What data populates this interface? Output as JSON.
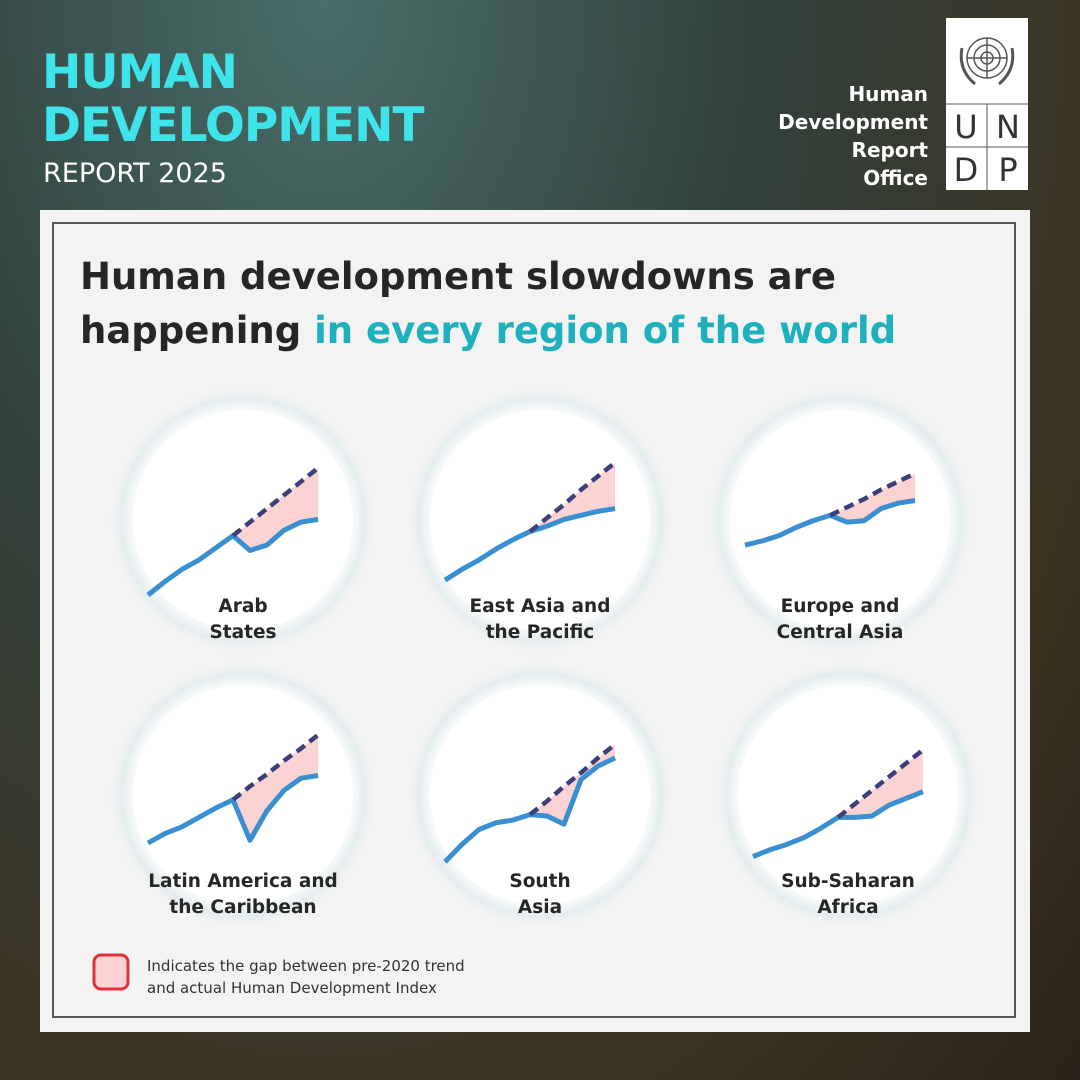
{
  "header": {
    "title": "HUMAN\nDEVELOPMENT",
    "subtitle": "REPORT 2025",
    "office": "Human\nDevelopment\nReport\nOffice",
    "logo_letters": [
      "U",
      "N",
      "D",
      "P"
    ]
  },
  "headline": {
    "text": "Human development slowdowns are\nhappening ",
    "highlight": "in every region of the world"
  },
  "chart_data": [
    {
      "type": "line",
      "title": "Arab\nStates",
      "x": [
        0,
        1,
        2,
        3,
        4,
        5,
        6,
        7,
        8,
        9,
        10
      ],
      "xlim": [
        0,
        10
      ],
      "ylim": [
        0,
        100
      ],
      "fill": "#fbd3d3",
      "series": [
        {
          "color": "#3a8fd0",
          "values": [
            0,
            10,
            19,
            26,
            35,
            44,
            33,
            37,
            48,
            54,
            56
          ]
        },
        {
          "color": "#3b3f7a",
          "values": [
            null,
            null,
            null,
            null,
            null,
            44,
            54,
            64,
            74,
            84,
            94
          ]
        }
      ]
    },
    {
      "type": "line",
      "title": "East Asia and\nthe Pacific",
      "x": [
        0,
        1,
        2,
        3,
        4,
        5,
        6,
        7,
        8,
        9,
        10
      ],
      "xlim": [
        0,
        10
      ],
      "ylim": [
        0,
        100
      ],
      "fill": "#fbd3d3",
      "series": [
        {
          "color": "#3a8fd0",
          "values": [
            11,
            19,
            26,
            34,
            41,
            47,
            51,
            56,
            59,
            62,
            64
          ]
        },
        {
          "color": "#3b3f7a",
          "values": [
            null,
            null,
            null,
            null,
            null,
            47,
            57,
            67,
            78,
            88,
            98
          ]
        }
      ]
    },
    {
      "type": "line",
      "title": "Europe and\nCentral Asia",
      "x": [
        0,
        1,
        2,
        3,
        4,
        5,
        6,
        7,
        8,
        9,
        10
      ],
      "xlim": [
        0,
        10
      ],
      "ylim": [
        0,
        100
      ],
      "fill": "#fbd3d3",
      "series": [
        {
          "color": "#3a8fd0",
          "values": [
            37,
            40,
            44,
            50,
            55,
            59,
            54,
            55,
            64,
            68,
            70
          ]
        },
        {
          "color": "#3b3f7a",
          "values": [
            null,
            null,
            null,
            null,
            null,
            59,
            65,
            71,
            78,
            84,
            90
          ]
        }
      ]
    },
    {
      "type": "line",
      "title": "Latin America and\nthe Caribbean",
      "x": [
        0,
        1,
        2,
        3,
        4,
        5,
        6,
        7,
        8,
        9,
        10
      ],
      "xlim": [
        0,
        10
      ],
      "ylim": [
        0,
        100
      ],
      "fill": "#fbd3d3",
      "series": [
        {
          "color": "#3a8fd0",
          "values": [
            20,
            27,
            32,
            39,
            46,
            52,
            22,
            44,
            59,
            68,
            70
          ]
        },
        {
          "color": "#3b3f7a",
          "values": [
            null,
            null,
            null,
            null,
            null,
            52,
            62,
            71,
            81,
            90,
            100
          ]
        }
      ]
    },
    {
      "type": "line",
      "title": "South\nAsia",
      "x": [
        0,
        1,
        2,
        3,
        4,
        5,
        6,
        7,
        8,
        9,
        10
      ],
      "xlim": [
        0,
        10
      ],
      "ylim": [
        0,
        100
      ],
      "fill": "#fbd3d3",
      "series": [
        {
          "color": "#3a8fd0",
          "values": [
            6,
            19,
            30,
            35,
            37,
            41,
            40,
            34,
            67,
            77,
            83
          ]
        },
        {
          "color": "#3b3f7a",
          "values": [
            null,
            null,
            null,
            null,
            null,
            41,
            51,
            62,
            72,
            83,
            93
          ]
        }
      ]
    },
    {
      "type": "line",
      "title": "Sub-Saharan\nAfrica",
      "x": [
        0,
        1,
        2,
        3,
        4,
        5,
        6,
        7,
        8,
        9,
        10
      ],
      "xlim": [
        0,
        10
      ],
      "ylim": [
        0,
        100
      ],
      "fill": "#fbd3d3",
      "series": [
        {
          "color": "#3a8fd0",
          "values": [
            10,
            15,
            19,
            24,
            31,
            39,
            39,
            40,
            48,
            53,
            58
          ]
        },
        {
          "color": "#3b3f7a",
          "values": [
            null,
            null,
            null,
            null,
            null,
            39,
            49,
            59,
            69,
            79,
            89
          ]
        }
      ]
    }
  ],
  "legend": {
    "text": "Indicates the gap between pre-2020 trend\nand actual Human Development Index"
  }
}
